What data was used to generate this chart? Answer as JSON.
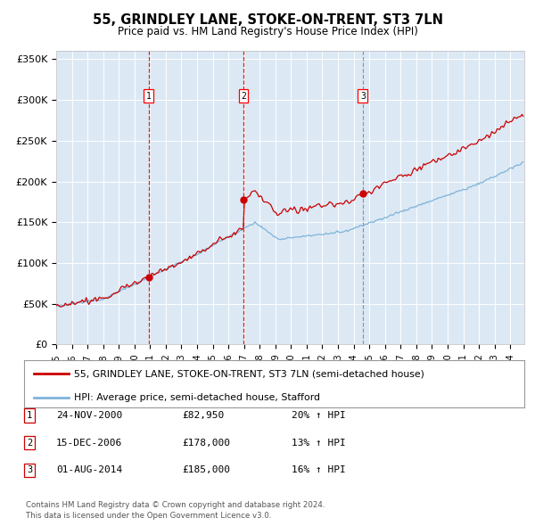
{
  "title": "55, GRINDLEY LANE, STOKE-ON-TRENT, ST3 7LN",
  "subtitle": "Price paid vs. HM Land Registry's House Price Index (HPI)",
  "plot_bg_color": "#dce9f5",
  "ylim": [
    0,
    360000
  ],
  "yticks": [
    0,
    50000,
    100000,
    150000,
    200000,
    250000,
    300000,
    350000
  ],
  "ytick_labels": [
    "£0",
    "£50K",
    "£100K",
    "£150K",
    "£200K",
    "£250K",
    "£300K",
    "£350K"
  ],
  "sale_dates_num": [
    2000.896,
    2006.958,
    2014.583
  ],
  "sale_prices": [
    82950,
    178000,
    185000
  ],
  "sale_labels": [
    "1",
    "2",
    "3"
  ],
  "sale_line_colors": [
    "#cc0000",
    "#cc0000",
    "#888888"
  ],
  "sale_line_styles": [
    "--",
    "--",
    "--"
  ],
  "sale_info": [
    {
      "label": "1",
      "date": "24-NOV-2000",
      "price": "£82,950",
      "hpi": "20% ↑ HPI"
    },
    {
      "label": "2",
      "date": "15-DEC-2006",
      "price": "£178,000",
      "hpi": "13% ↑ HPI"
    },
    {
      "label": "3",
      "date": "01-AUG-2014",
      "price": "£185,000",
      "hpi": "16% ↑ HPI"
    }
  ],
  "legend_red": "55, GRINDLEY LANE, STOKE-ON-TRENT, ST3 7LN (semi-detached house)",
  "legend_blue": "HPI: Average price, semi-detached house, Stafford",
  "footer": "Contains HM Land Registry data © Crown copyright and database right 2024.\nThis data is licensed under the Open Government Licence v3.0.",
  "red_color": "#cc0000",
  "blue_color": "#7fb3d8",
  "xmin": 1995,
  "xmax": 2024.9
}
